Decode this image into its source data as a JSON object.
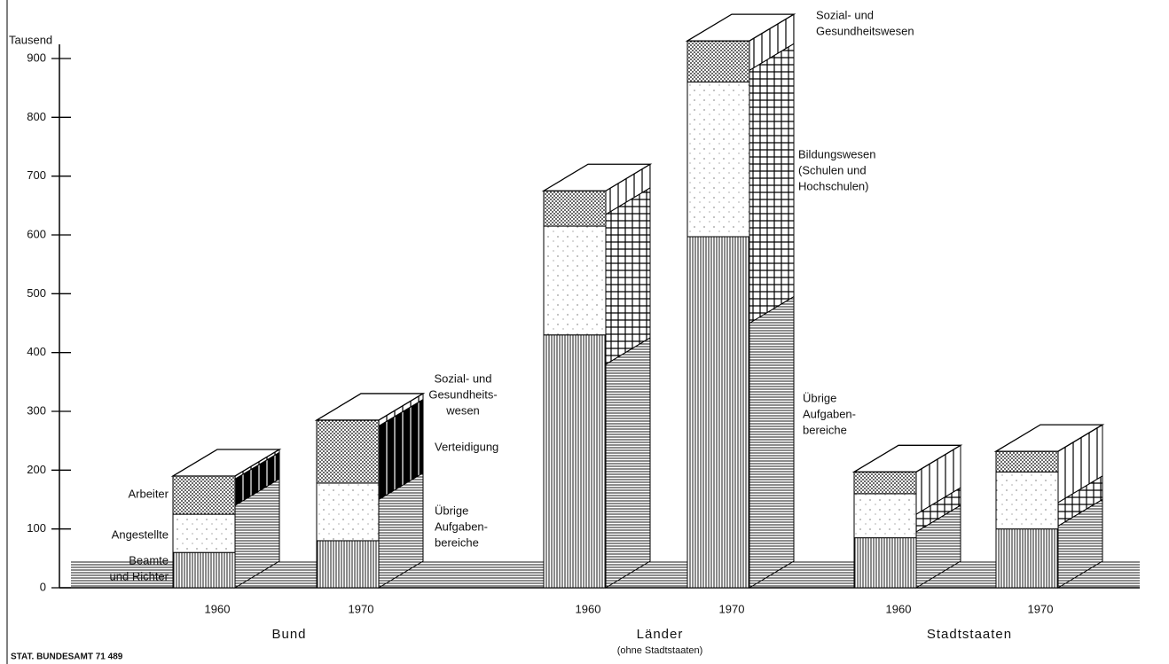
{
  "chart_data": {
    "type": "bar3d",
    "unit_label": "Tausend",
    "ylim": [
      0,
      900
    ],
    "yticks": [
      0,
      100,
      200,
      300,
      400,
      500,
      600,
      700,
      800,
      900
    ],
    "front_series": [
      {
        "name_lines": [
          "Beamte",
          "und Richter"
        ],
        "pattern": "vertical-lines"
      },
      {
        "name_lines": [
          "Angestellte"
        ],
        "pattern": "sparse-dots"
      },
      {
        "name_lines": [
          "Arbeiter"
        ],
        "pattern": "dense-dots"
      }
    ],
    "groups": [
      {
        "name": "Bund",
        "side_patterns": [
          "horizontal-lines",
          "black-stripes",
          "wide-vertical"
        ],
        "side_labels": [
          [
            "Übrige",
            "Aufgaben-",
            "bereiche"
          ],
          [
            "Verteidigung"
          ],
          [
            "Sozial- und",
            "Gesundheits-",
            "wesen"
          ]
        ],
        "bars": [
          {
            "year": "1960",
            "front": [
              60,
              65,
              65
            ],
            "side": [
              140,
              45,
              5
            ]
          },
          {
            "year": "1970",
            "front": [
              80,
              98,
              107
            ],
            "side": [
              150,
              125,
              10
            ]
          }
        ]
      },
      {
        "name": "Länder",
        "note": "(ohne Stadtstaaten)",
        "side_patterns": [
          "horizontal-lines",
          "grid",
          "wide-vertical"
        ],
        "side_labels": [
          [
            "Übrige",
            "Aufgaben-",
            "bereiche"
          ],
          [
            "Bildungswesen",
            "(Schulen und",
            "Hochschulen)"
          ],
          [
            "Sozial- und",
            "Gesundheitswesen"
          ]
        ],
        "bars": [
          {
            "year": "1960",
            "front": [
              430,
              185,
              60
            ],
            "side": [
              380,
              255,
              40
            ]
          },
          {
            "year": "1970",
            "front": [
              597,
              263,
              70
            ],
            "side": [
              450,
              430,
              50
            ]
          }
        ]
      },
      {
        "name": "Stadtstaaten",
        "side_patterns": [
          "horizontal-lines",
          "grid",
          "wide-vertical"
        ],
        "bars": [
          {
            "year": "1960",
            "front": [
              85,
              75,
              37
            ],
            "side": [
              95,
              30,
              72
            ]
          },
          {
            "year": "1970",
            "front": [
              100,
              97,
              35
            ],
            "side": [
              105,
              40,
              87
            ]
          }
        ]
      }
    ],
    "source": "STAT. BUNDESAMT 71 489"
  }
}
